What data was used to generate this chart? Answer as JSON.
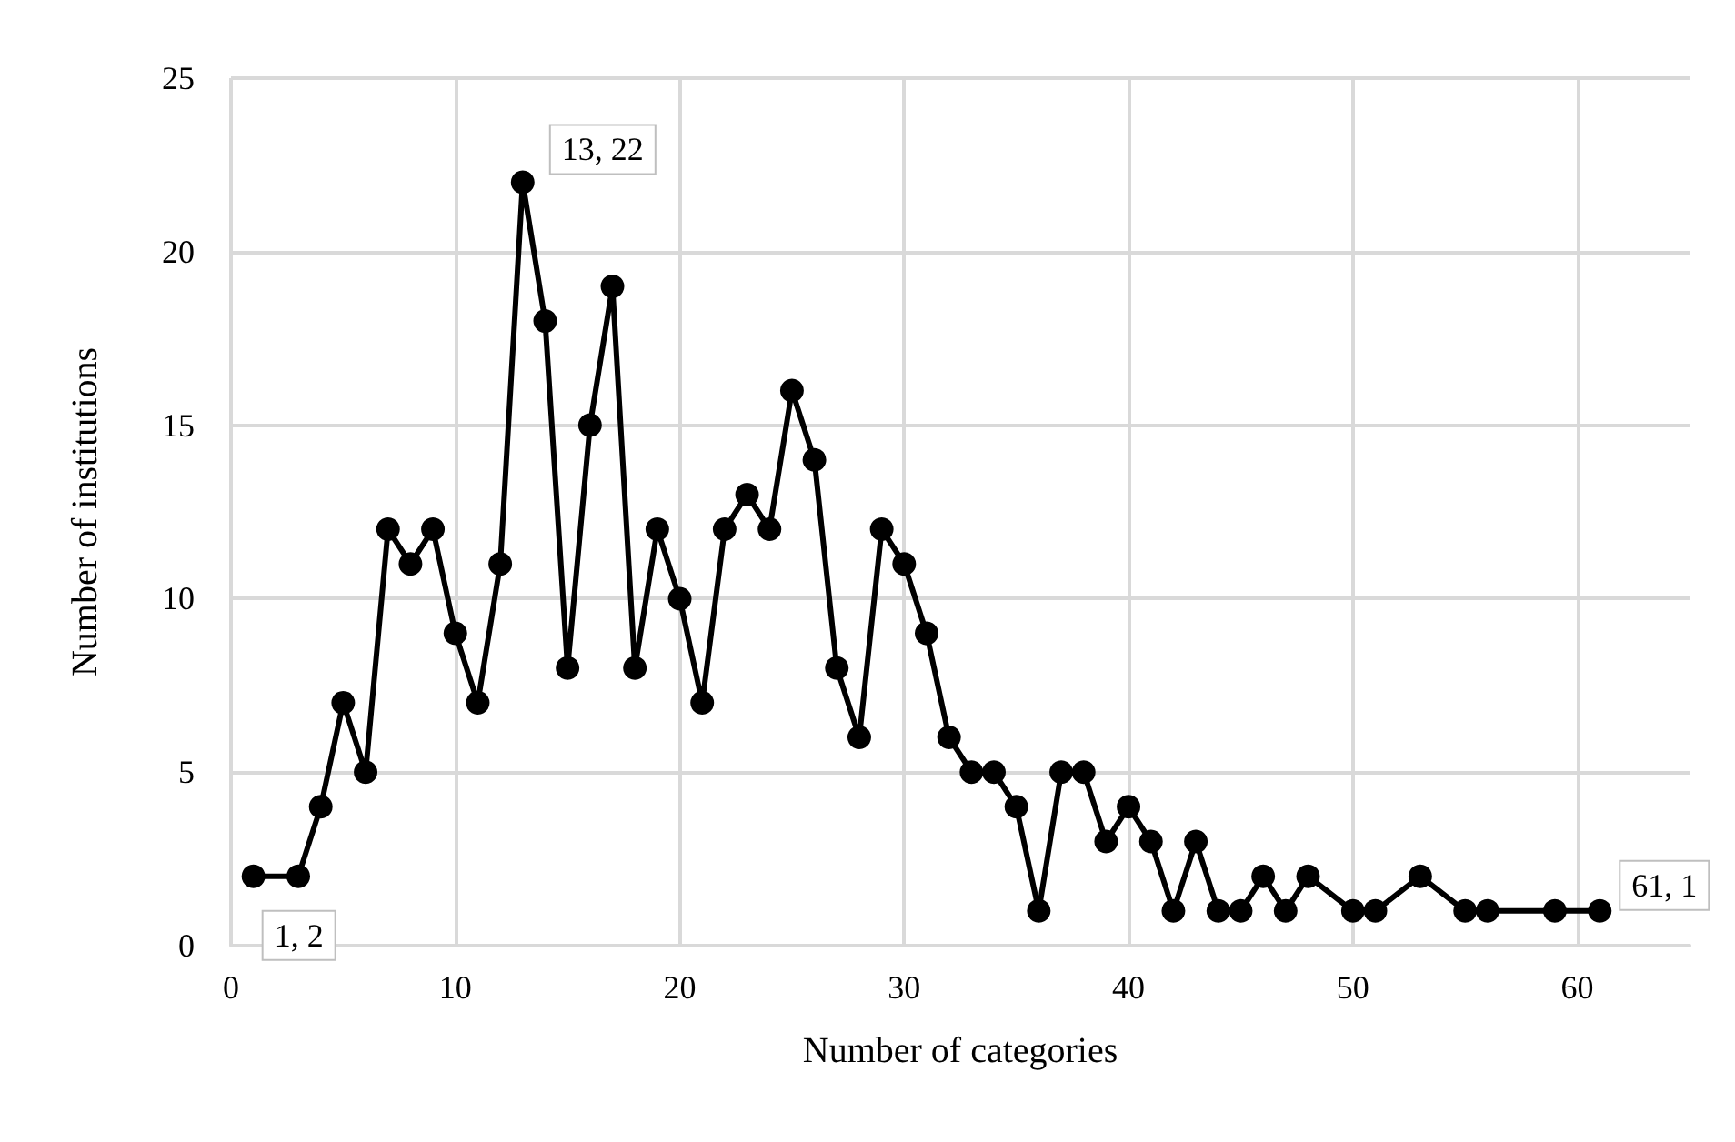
{
  "chart_data": {
    "type": "line",
    "xlabel": "Number of categories",
    "ylabel": "Number of institutions",
    "x": [
      1,
      3,
      4,
      5,
      6,
      7,
      8,
      9,
      10,
      11,
      12,
      13,
      14,
      15,
      16,
      17,
      18,
      19,
      20,
      21,
      22,
      23,
      24,
      25,
      26,
      27,
      28,
      29,
      30,
      31,
      32,
      33,
      34,
      35,
      36,
      37,
      38,
      39,
      40,
      41,
      42,
      43,
      44,
      45,
      46,
      47,
      48,
      50,
      51,
      53,
      55,
      56,
      59,
      61
    ],
    "values": [
      2,
      2,
      4,
      7,
      5,
      12,
      11,
      12,
      9,
      7,
      11,
      22,
      18,
      8,
      15,
      19,
      8,
      12,
      10,
      7,
      12,
      13,
      12,
      16,
      14,
      8,
      6,
      12,
      11,
      9,
      6,
      5,
      5,
      4,
      1,
      5,
      5,
      3,
      4,
      3,
      1,
      3,
      1,
      1,
      2,
      1,
      2,
      1,
      1,
      2,
      1,
      1,
      1,
      1
    ],
    "color": "#000000",
    "marker": "circle",
    "line_style": "solid",
    "grid": true,
    "xlim": [
      0,
      65
    ],
    "xticks": [
      0,
      10,
      20,
      30,
      40,
      50,
      60
    ],
    "ylim": [
      0,
      25
    ],
    "yticks": [
      0,
      5,
      10,
      15,
      20,
      25
    ],
    "annotations": [
      {
        "text": "1, 2",
        "x": 1,
        "y": 2
      },
      {
        "text": "13, 22",
        "x": 13,
        "y": 22
      },
      {
        "text": "61, 1",
        "x": 61,
        "y": 1
      }
    ]
  }
}
